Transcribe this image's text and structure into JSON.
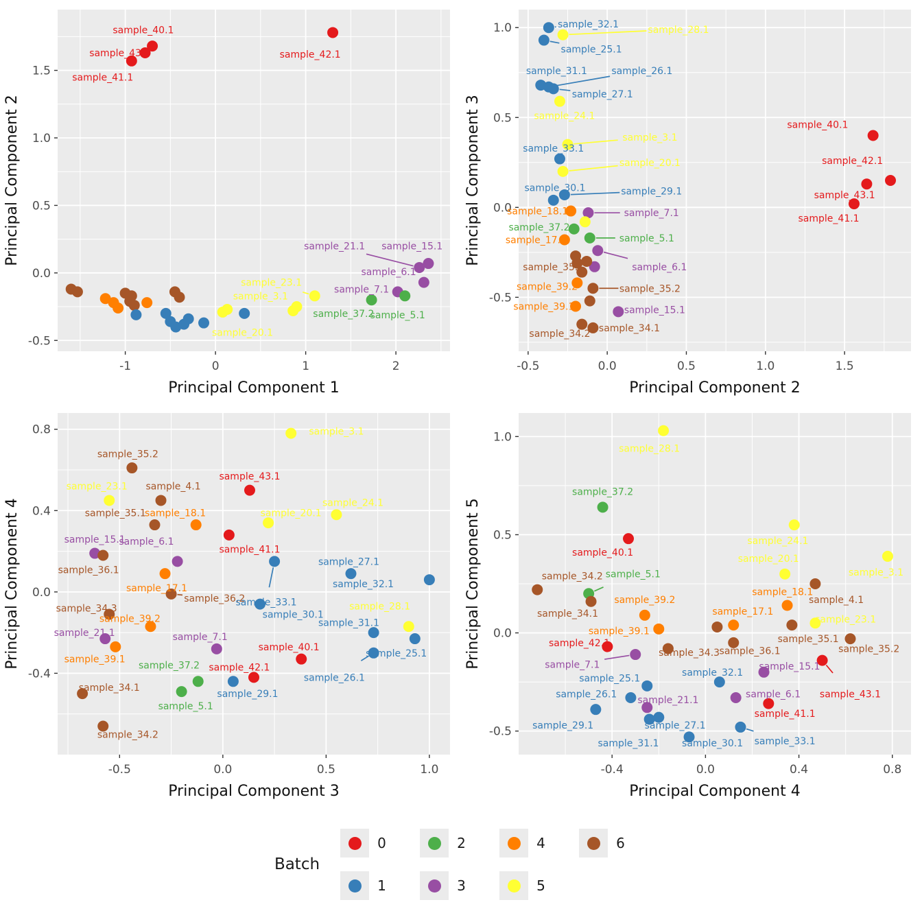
{
  "colors": {
    "0": "#E41A1C",
    "1": "#377EB8",
    "2": "#4DAF4A",
    "3": "#984EA3",
    "4": "#FF7F00",
    "5": "#FFFF33",
    "6": "#A65628"
  },
  "legend": {
    "title": "Batch",
    "entries": [
      {
        "label": "0",
        "batch": "0"
      },
      {
        "label": "1",
        "batch": "1"
      },
      {
        "label": "2",
        "batch": "2"
      },
      {
        "label": "3",
        "batch": "3"
      },
      {
        "label": "4",
        "batch": "4"
      },
      {
        "label": "5",
        "batch": "5"
      },
      {
        "label": "6",
        "batch": "6"
      }
    ]
  },
  "chart_data": [
    {
      "type": "scatter",
      "xlabel": "Principal Component 1",
      "ylabel": "Principal Component 2",
      "xlim": [
        -1.75,
        2.6
      ],
      "ylim": [
        -0.58,
        1.95
      ],
      "xticks": [
        -1,
        0,
        1,
        2
      ],
      "xtick_labels": [
        "-1",
        "0",
        "1",
        "2"
      ],
      "yticks": [
        -0.5,
        0,
        0.5,
        1,
        1.5
      ],
      "ytick_labels": [
        "-0.5",
        "0.0",
        "0.5",
        "1.0",
        "1.5"
      ],
      "points": [
        [
          "sample_40.1",
          0,
          -0.7,
          1.68,
          -0.8,
          1.8
        ],
        [
          "sample_43.1",
          0,
          -0.78,
          1.63,
          -1.06,
          1.63,
          0
        ],
        [
          "sample_41.1",
          0,
          -0.93,
          1.57,
          -1.25,
          1.45,
          0
        ],
        [
          "sample_42.1",
          0,
          1.3,
          1.78,
          1.05,
          1.62,
          0
        ],
        [
          "sample_21.1",
          3,
          2.26,
          0.04,
          1.32,
          0.2,
          1
        ],
        [
          "sample_15.1",
          3,
          2.36,
          0.07,
          2.18,
          0.2
        ],
        [
          "sample_6.1",
          3,
          2.31,
          -0.07,
          1.92,
          0.01
        ],
        [
          "sample_7.1",
          3,
          2.02,
          -0.14,
          1.62,
          -0.12
        ],
        [
          "sample_23.1",
          5,
          1.1,
          -0.17,
          0.62,
          -0.07,
          1
        ],
        [
          "sample_3.1",
          5,
          0.9,
          -0.25,
          0.5,
          -0.17,
          1
        ],
        [
          "sample_37.2",
          2,
          1.73,
          -0.2,
          1.42,
          -0.3
        ],
        [
          "sample_5.1",
          2,
          2.1,
          -0.17,
          2.02,
          -0.31
        ],
        [
          "sample_20.1",
          5,
          0.08,
          -0.29,
          0.3,
          -0.44
        ],
        [
          null,
          6,
          -1.6,
          -0.12
        ],
        [
          null,
          6,
          -1.53,
          -0.14
        ],
        [
          null,
          4,
          -1.22,
          -0.19
        ],
        [
          null,
          4,
          -1.13,
          -0.22
        ],
        [
          null,
          4,
          -1.08,
          -0.26
        ],
        [
          null,
          6,
          -1.0,
          -0.15
        ],
        [
          null,
          6,
          -0.95,
          -0.21
        ],
        [
          null,
          6,
          -0.9,
          -0.24
        ],
        [
          null,
          6,
          -0.93,
          -0.17
        ],
        [
          null,
          4,
          -0.76,
          -0.22
        ],
        [
          null,
          6,
          -0.45,
          -0.14
        ],
        [
          null,
          6,
          -0.4,
          -0.18
        ],
        [
          null,
          1,
          -0.88,
          -0.31
        ],
        [
          null,
          1,
          -0.55,
          -0.3
        ],
        [
          null,
          1,
          -0.5,
          -0.36
        ],
        [
          null,
          1,
          -0.44,
          -0.4
        ],
        [
          null,
          1,
          -0.35,
          -0.38
        ],
        [
          null,
          1,
          -0.3,
          -0.34
        ],
        [
          null,
          1,
          -0.13,
          -0.37
        ],
        [
          null,
          1,
          0.32,
          -0.3
        ],
        [
          null,
          5,
          0.86,
          -0.28
        ],
        [
          null,
          5,
          0.13,
          -0.27
        ]
      ]
    },
    {
      "type": "scatter",
      "xlabel": "Principal Component 2",
      "ylabel": "Principal Component 3",
      "xlim": [
        -0.56,
        1.92
      ],
      "ylim": [
        -0.8,
        1.1
      ],
      "xticks": [
        -0.5,
        0,
        0.5,
        1,
        1.5
      ],
      "xtick_labels": [
        "-0.5",
        "0.0",
        "0.5",
        "1.0",
        "1.5"
      ],
      "yticks": [
        -0.5,
        0,
        0.5,
        1
      ],
      "ytick_labels": [
        "-0.5",
        "0.0",
        "0.5",
        "1.0"
      ],
      "points": [
        [
          "sample_32.1",
          1,
          -0.37,
          1.0,
          -0.12,
          1.02
        ],
        [
          "sample_28.1",
          5,
          -0.28,
          0.96,
          0.45,
          0.99,
          1
        ],
        [
          "sample_25.1",
          1,
          -0.4,
          0.93,
          -0.1,
          0.88,
          1
        ],
        [
          "sample_31.1",
          1,
          -0.42,
          0.68,
          -0.32,
          0.76
        ],
        [
          "sample_26.1",
          1,
          -0.37,
          0.67,
          0.22,
          0.76,
          1
        ],
        [
          "sample_27.1",
          1,
          -0.34,
          0.66,
          -0.03,
          0.63,
          1
        ],
        [
          "sample_24.1",
          5,
          -0.3,
          0.59,
          -0.27,
          0.51
        ],
        [
          "sample_3.1",
          5,
          -0.25,
          0.35,
          0.27,
          0.39,
          1
        ],
        [
          "sample_33.1",
          1,
          -0.3,
          0.27,
          -0.34,
          0.33
        ],
        [
          "sample_20.1",
          5,
          -0.28,
          0.2,
          0.27,
          0.25,
          1
        ],
        [
          "sample_30.1",
          1,
          -0.34,
          0.04,
          -0.33,
          0.11
        ],
        [
          "sample_29.1",
          1,
          -0.27,
          0.07,
          0.28,
          0.09,
          1
        ],
        [
          "sample_18.1",
          4,
          -0.23,
          -0.02,
          -0.44,
          -0.02
        ],
        [
          "sample_7.1",
          3,
          -0.12,
          -0.03,
          0.28,
          -0.03,
          1
        ],
        [
          "sample_37.2",
          2,
          -0.21,
          -0.12,
          -0.43,
          -0.11
        ],
        [
          "sample_5.1",
          2,
          -0.11,
          -0.17,
          0.25,
          -0.17,
          1
        ],
        [
          "sample_17.1",
          4,
          -0.27,
          -0.18,
          -0.45,
          -0.18
        ],
        [
          "sample_6.1",
          3,
          -0.06,
          -0.24,
          0.33,
          -0.33,
          1
        ],
        [
          "sample_35.1",
          6,
          -0.19,
          -0.31,
          -0.34,
          -0.33
        ],
        [
          "sample_39.2",
          4,
          -0.19,
          -0.42,
          -0.38,
          -0.44
        ],
        [
          "sample_35.2",
          6,
          -0.09,
          -0.45,
          0.27,
          -0.45,
          1
        ],
        [
          "sample_39.1",
          4,
          -0.2,
          -0.55,
          -0.4,
          -0.55
        ],
        [
          "sample_15.1",
          3,
          0.07,
          -0.58,
          0.3,
          -0.57
        ],
        [
          "sample_34.1",
          6,
          -0.09,
          -0.67,
          0.14,
          -0.67,
          0
        ],
        [
          "sample_34.2",
          6,
          -0.16,
          -0.65,
          -0.3,
          -0.7,
          0
        ],
        [
          "sample_40.1",
          0,
          1.68,
          0.4,
          1.33,
          0.46,
          0
        ],
        [
          "sample_42.1",
          0,
          1.79,
          0.15,
          1.55,
          0.26,
          0
        ],
        [
          "sample_43.1",
          0,
          1.64,
          0.13,
          1.5,
          0.07,
          0
        ],
        [
          "sample_41.1",
          0,
          1.56,
          0.02,
          1.4,
          -0.06,
          0
        ],
        [
          null,
          6,
          -0.2,
          -0.27
        ],
        [
          null,
          3,
          -0.08,
          -0.33
        ],
        [
          null,
          5,
          -0.14,
          -0.08
        ],
        [
          null,
          6,
          -0.13,
          -0.3
        ],
        [
          null,
          6,
          -0.16,
          -0.36
        ],
        [
          null,
          6,
          -0.11,
          -0.52
        ]
      ]
    },
    {
      "type": "scatter",
      "xlabel": "Principal Component 3",
      "ylabel": "Principal Component 4",
      "xlim": [
        -0.8,
        1.1
      ],
      "ylim": [
        -0.8,
        0.88
      ],
      "xticks": [
        -0.5,
        0,
        0.5,
        1
      ],
      "xtick_labels": [
        "-0.5",
        "0.0",
        "0.5",
        "1.0"
      ],
      "yticks": [
        -0.4,
        0,
        0.4,
        0.8
      ],
      "ytick_labels": [
        "-0.4",
        "0.0",
        "0.4",
        "0.8"
      ],
      "points": [
        [
          "sample_3.1",
          5,
          0.33,
          0.78,
          0.55,
          0.79,
          0
        ],
        [
          "sample_35.2",
          6,
          -0.44,
          0.61,
          -0.46,
          0.68
        ],
        [
          "sample_23.1",
          5,
          -0.55,
          0.45,
          -0.61,
          0.52
        ],
        [
          "sample_4.1",
          6,
          -0.3,
          0.45,
          -0.24,
          0.52
        ],
        [
          "sample_43.1",
          0,
          0.13,
          0.5,
          0.13,
          0.57
        ],
        [
          "sample_35.1",
          6,
          -0.33,
          0.33,
          -0.52,
          0.39,
          0
        ],
        [
          "sample_18.1",
          4,
          -0.13,
          0.33,
          -0.23,
          0.39
        ],
        [
          "sample_20.1",
          5,
          0.22,
          0.34,
          0.33,
          0.39
        ],
        [
          "sample_24.1",
          5,
          0.55,
          0.38,
          0.63,
          0.44
        ],
        [
          "sample_15.1",
          3,
          -0.62,
          0.19,
          -0.62,
          0.26
        ],
        [
          "sample_6.1",
          3,
          -0.22,
          0.15,
          -0.37,
          0.25,
          1
        ],
        [
          "sample_41.1",
          0,
          0.03,
          0.28,
          0.13,
          0.21,
          0
        ],
        [
          "sample_36.1",
          6,
          -0.58,
          0.18,
          -0.65,
          0.11
        ],
        [
          "sample_27.1",
          1,
          0.62,
          0.09,
          0.61,
          0.15
        ],
        [
          "sample_32.1",
          1,
          1.0,
          0.06,
          0.68,
          0.04,
          0
        ],
        [
          "sample_17.1",
          4,
          -0.28,
          0.09,
          -0.32,
          0.02
        ],
        [
          "sample_36.2",
          6,
          -0.25,
          -0.01,
          -0.04,
          -0.03,
          1
        ],
        [
          "sample_33.1",
          1,
          0.25,
          0.15,
          0.21,
          -0.05,
          1
        ],
        [
          "sample_30.1",
          1,
          0.18,
          -0.06,
          0.34,
          -0.11,
          0
        ],
        [
          "sample_28.1",
          5,
          0.9,
          -0.17,
          0.76,
          -0.07,
          1
        ],
        [
          "sample_31.1",
          1,
          0.73,
          -0.2,
          0.61,
          -0.15,
          0
        ],
        [
          "sample_25.1",
          1,
          0.93,
          -0.23,
          0.84,
          -0.3,
          0
        ],
        [
          "sample_26.1",
          1,
          0.73,
          -0.3,
          0.54,
          -0.42,
          1
        ],
        [
          "sample_34.3",
          6,
          -0.55,
          -0.11,
          -0.66,
          -0.08
        ],
        [
          "sample_39.2",
          4,
          -0.35,
          -0.17,
          -0.45,
          -0.13
        ],
        [
          "sample_21.1",
          3,
          -0.57,
          -0.23,
          -0.67,
          -0.2
        ],
        [
          "sample_39.1",
          4,
          -0.52,
          -0.27,
          -0.62,
          -0.33
        ],
        [
          "sample_7.1",
          3,
          -0.03,
          -0.28,
          -0.11,
          -0.22
        ],
        [
          "sample_40.1",
          0,
          0.38,
          -0.33,
          0.32,
          -0.27
        ],
        [
          "sample_42.1",
          0,
          0.15,
          -0.42,
          0.08,
          -0.37
        ],
        [
          "sample_37.2",
          2,
          -0.12,
          -0.44,
          -0.26,
          -0.36,
          0
        ],
        [
          "sample_5.1",
          2,
          -0.2,
          -0.49,
          -0.18,
          -0.56
        ],
        [
          "sample_29.1",
          1,
          0.05,
          -0.44,
          0.12,
          -0.5
        ],
        [
          "sample_34.1",
          6,
          -0.68,
          -0.5,
          -0.55,
          -0.47,
          0
        ],
        [
          "sample_34.2",
          6,
          -0.58,
          -0.66,
          -0.46,
          -0.7,
          0
        ]
      ]
    },
    {
      "type": "scatter",
      "xlabel": "Principal Component 4",
      "ylabel": "Principal Component 5",
      "xlim": [
        -0.8,
        0.88
      ],
      "ylim": [
        -0.62,
        1.12
      ],
      "xticks": [
        -0.4,
        0,
        0.4,
        0.8
      ],
      "xtick_labels": [
        "-0.4",
        "0.0",
        "0.4",
        "0.8"
      ],
      "yticks": [
        -0.5,
        0,
        0.5,
        1
      ],
      "ytick_labels": [
        "-0.5",
        "0.0",
        "0.5",
        "1.0"
      ],
      "points": [
        [
          "sample_28.1",
          5,
          -0.18,
          1.03,
          -0.24,
          0.94
        ],
        [
          "sample_37.2",
          2,
          -0.44,
          0.64,
          -0.44,
          0.72
        ],
        [
          "sample_40.1",
          0,
          -0.33,
          0.48,
          -0.44,
          0.41
        ],
        [
          "sample_24.1",
          5,
          0.38,
          0.55,
          0.31,
          0.47
        ],
        [
          "sample_20.1",
          5,
          0.34,
          0.3,
          0.27,
          0.38
        ],
        [
          "sample_3.1",
          5,
          0.78,
          0.39,
          0.73,
          0.31
        ],
        [
          "sample_34.2",
          6,
          -0.72,
          0.22,
          -0.57,
          0.29,
          0
        ],
        [
          "sample_5.1",
          2,
          -0.5,
          0.2,
          -0.31,
          0.3,
          1
        ],
        [
          "sample_34.1",
          6,
          -0.49,
          0.16,
          -0.59,
          0.1
        ],
        [
          "sample_39.2",
          4,
          -0.26,
          0.09,
          -0.26,
          0.17
        ],
        [
          "sample_18.1",
          4,
          0.35,
          0.14,
          0.33,
          0.21
        ],
        [
          "sample_4.1",
          6,
          0.47,
          0.25,
          0.56,
          0.17,
          0
        ],
        [
          "sample_17.1",
          4,
          0.12,
          0.04,
          0.16,
          0.11
        ],
        [
          "sample_23.1",
          5,
          0.47,
          0.05,
          0.6,
          0.07,
          0
        ],
        [
          "sample_39.1",
          4,
          -0.2,
          0.02,
          -0.37,
          0.01,
          0
        ],
        [
          "sample_42.1",
          0,
          -0.42,
          -0.07,
          -0.54,
          -0.05,
          0
        ],
        [
          "sample_7.1",
          3,
          -0.3,
          -0.11,
          -0.57,
          -0.16,
          1
        ],
        [
          "sample_34.3",
          6,
          -0.16,
          -0.08,
          -0.07,
          -0.1
        ],
        [
          "sample_36.1",
          6,
          0.12,
          -0.05,
          0.19,
          -0.09
        ],
        [
          "sample_35.1",
          6,
          0.37,
          0.04,
          0.44,
          -0.03
        ],
        [
          "sample_35.2",
          6,
          0.62,
          -0.03,
          0.7,
          -0.08
        ],
        [
          "sample_15.1",
          3,
          0.25,
          -0.2,
          0.36,
          -0.17,
          0
        ],
        [
          "sample_43.1",
          0,
          0.5,
          -0.14,
          0.62,
          -0.31,
          1
        ],
        [
          "sample_6.1",
          3,
          0.13,
          -0.33,
          0.29,
          -0.31,
          0
        ],
        [
          "sample_41.1",
          0,
          0.27,
          -0.36,
          0.34,
          -0.41
        ],
        [
          "sample_32.1",
          1,
          0.06,
          -0.25,
          0.03,
          -0.2
        ],
        [
          "sample_25.1",
          1,
          -0.25,
          -0.27,
          -0.41,
          -0.23,
          0
        ],
        [
          "sample_26.1",
          1,
          -0.32,
          -0.33,
          -0.51,
          -0.31,
          0
        ],
        [
          "sample_21.1",
          3,
          -0.25,
          -0.38,
          -0.16,
          -0.34
        ],
        [
          "sample_27.1",
          1,
          -0.2,
          -0.43,
          -0.13,
          -0.47
        ],
        [
          "sample_29.1",
          1,
          -0.47,
          -0.39,
          -0.61,
          -0.47,
          0
        ],
        [
          "sample_31.1",
          1,
          -0.24,
          -0.44,
          -0.33,
          -0.56,
          1
        ],
        [
          "sample_30.1",
          1,
          -0.07,
          -0.53,
          0.03,
          -0.56,
          0
        ],
        [
          "sample_33.1",
          1,
          0.15,
          -0.48,
          0.34,
          -0.55,
          1
        ],
        [
          null,
          6,
          0.05,
          0.03
        ]
      ]
    }
  ]
}
